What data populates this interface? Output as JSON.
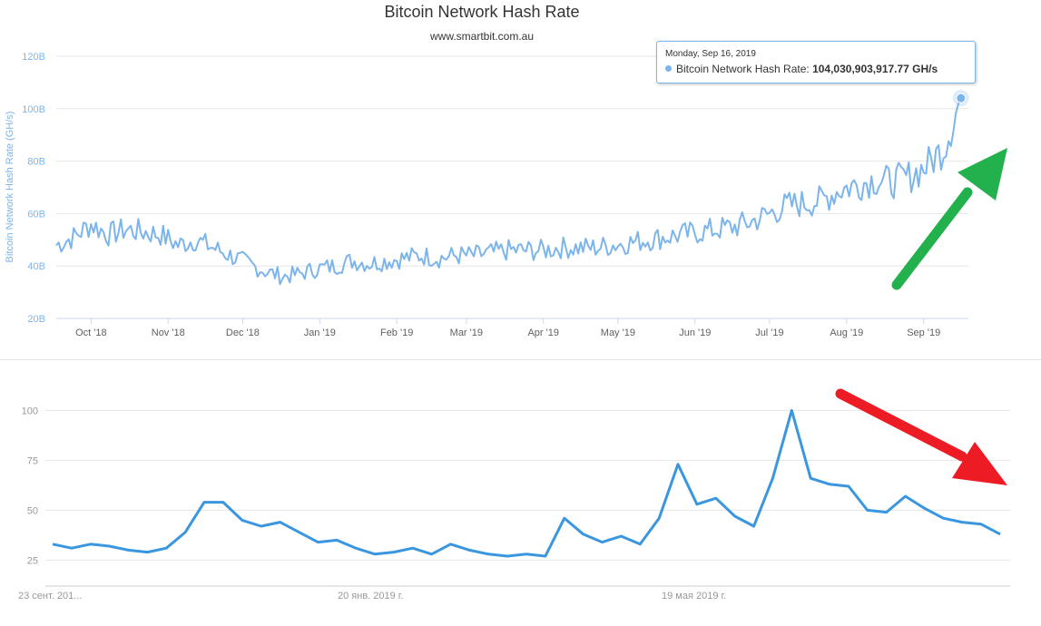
{
  "top": {
    "title": "Bitcoin Network Hash Rate",
    "subtitle": "www.smartbit.com.au",
    "ylabel": "Bitcoin Network Hash Rate (GH/s)",
    "tooltip": {
      "date": "Monday, Sep 16, 2019",
      "series_label": "Bitcoin Network Hash Rate:",
      "value": "104,030,903,917.77 GH/s"
    }
  },
  "chart_data": [
    {
      "type": "line",
      "title": "Bitcoin Network Hash Rate",
      "subtitle": "www.smartbit.com.au",
      "xlabel": "",
      "ylabel": "Bitcoin Network Hash Rate (GH/s)",
      "ylim": [
        20,
        120
      ],
      "y_unit": "B",
      "yticks": [
        20,
        40,
        60,
        80,
        100,
        120
      ],
      "ytick_labels": [
        "20B",
        "40B",
        "60B",
        "80B",
        "100B",
        "120B"
      ],
      "xtick_labels": [
        "Oct '18",
        "Nov '18",
        "Dec '18",
        "Jan '19",
        "Feb '19",
        "Mar '19",
        "Apr '19",
        "May '19",
        "Jun '19",
        "Jul '19",
        "Aug '19",
        "Sep '19"
      ],
      "xticks": [
        "2018-10-01",
        "2018-11-01",
        "2018-12-01",
        "2019-01-01",
        "2019-02-01",
        "2019-03-01",
        "2019-04-01",
        "2019-05-01",
        "2019-06-01",
        "2019-07-01",
        "2019-08-01",
        "2019-09-01"
      ],
      "xlim": [
        "2018-09-17",
        "2019-09-19"
      ],
      "grid": true,
      "series": [
        {
          "color": "#7cb5ec",
          "points": [
            [
              "2018-09-17",
              48
            ],
            [
              "2018-09-24",
              51
            ],
            [
              "2018-10-01",
              56
            ],
            [
              "2018-10-08",
              52
            ],
            [
              "2018-10-15",
              54
            ],
            [
              "2018-10-22",
              53
            ],
            [
              "2018-10-29",
              52
            ],
            [
              "2018-11-05",
              48
            ],
            [
              "2018-11-12",
              50
            ],
            [
              "2018-11-19",
              47
            ],
            [
              "2018-11-26",
              44
            ],
            [
              "2018-12-03",
              41
            ],
            [
              "2018-12-10",
              38
            ],
            [
              "2018-12-17",
              36
            ],
            [
              "2018-12-24",
              37
            ],
            [
              "2018-12-31",
              39
            ],
            [
              "2019-01-07",
              40
            ],
            [
              "2019-01-14",
              42
            ],
            [
              "2019-01-21",
              41
            ],
            [
              "2019-01-28",
              42
            ],
            [
              "2019-02-04",
              43
            ],
            [
              "2019-02-11",
              44
            ],
            [
              "2019-02-18",
              43
            ],
            [
              "2019-02-25",
              44
            ],
            [
              "2019-03-04",
              44
            ],
            [
              "2019-03-11",
              45
            ],
            [
              "2019-03-18",
              46
            ],
            [
              "2019-03-25",
              46
            ],
            [
              "2019-04-01",
              46
            ],
            [
              "2019-04-08",
              47
            ],
            [
              "2019-04-15",
              47
            ],
            [
              "2019-04-22",
              47
            ],
            [
              "2019-04-29",
              48
            ],
            [
              "2019-05-06",
              49
            ],
            [
              "2019-05-13",
              50
            ],
            [
              "2019-05-20",
              51
            ],
            [
              "2019-05-27",
              52
            ],
            [
              "2019-06-03",
              53
            ],
            [
              "2019-06-10",
              54
            ],
            [
              "2019-06-17",
              55
            ],
            [
              "2019-06-24",
              57
            ],
            [
              "2019-07-01",
              60
            ],
            [
              "2019-07-08",
              63
            ],
            [
              "2019-07-15",
              64
            ],
            [
              "2019-07-22",
              65
            ],
            [
              "2019-07-29",
              69
            ],
            [
              "2019-08-05",
              71
            ],
            [
              "2019-08-12",
              73
            ],
            [
              "2019-08-19",
              72
            ],
            [
              "2019-08-26",
              74
            ],
            [
              "2019-09-02",
              78
            ],
            [
              "2019-09-09",
              85
            ],
            [
              "2019-09-16",
              104.03
            ]
          ]
        }
      ]
    },
    {
      "type": "line",
      "title": "",
      "xlabel": "",
      "ylabel": "",
      "ylim": [
        12,
        112
      ],
      "yticks": [
        25,
        50,
        75,
        100
      ],
      "ytick_labels": [
        "25",
        "50",
        "75",
        "100"
      ],
      "xlim": [
        0,
        52
      ],
      "xticks": [
        0,
        17,
        34
      ],
      "xtick_labels": [
        "23 сент. 201...",
        "20 янв. 2019 г.",
        "19 мая 2019 г."
      ],
      "grid": true,
      "series": [
        {
          "color": "#3a96df",
          "values": [
            33,
            31,
            33,
            32,
            30,
            29,
            31,
            39,
            54,
            54,
            45,
            42,
            44,
            39,
            34,
            35,
            31,
            28,
            29,
            31,
            28,
            33,
            30,
            28,
            27,
            28,
            27,
            46,
            38,
            34,
            37,
            33,
            46,
            73,
            53,
            56,
            47,
            42,
            66,
            100,
            66,
            63,
            62,
            50,
            49,
            57,
            51,
            46,
            44,
            43,
            38
          ]
        }
      ]
    }
  ],
  "arrows": {
    "up_color": "#22b14c",
    "down_color": "#ed1c24"
  }
}
